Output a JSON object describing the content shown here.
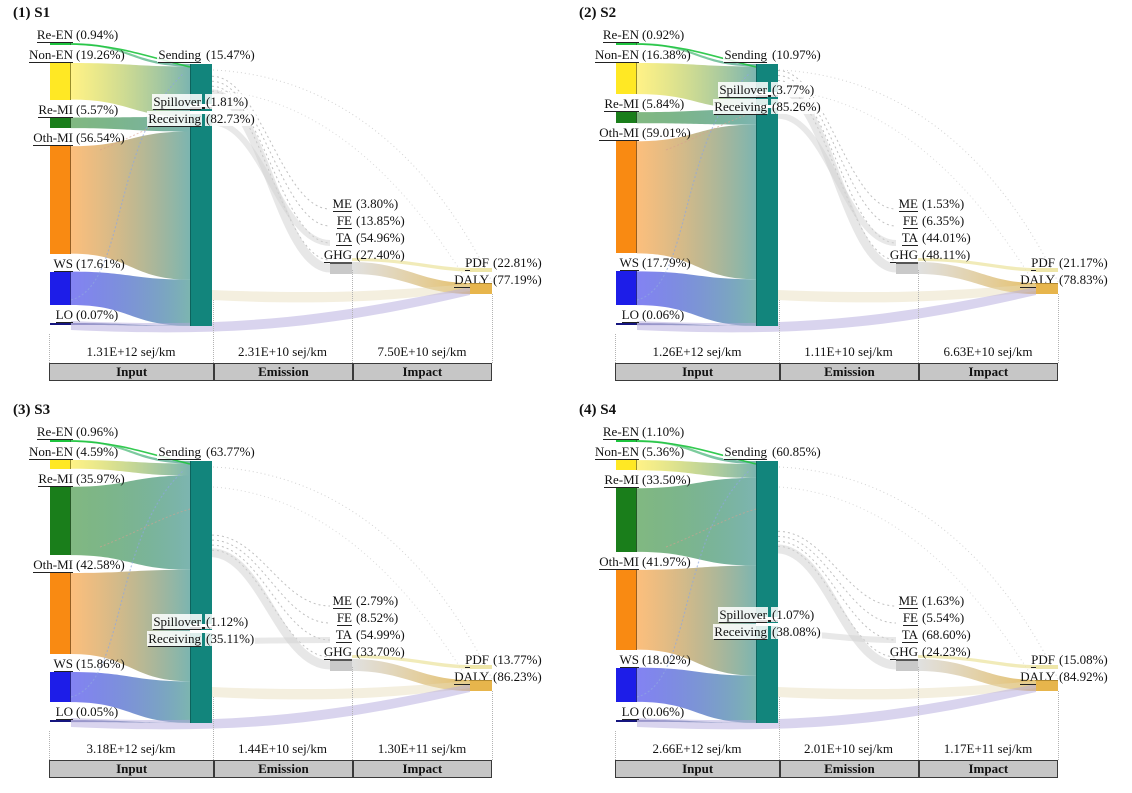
{
  "palette": {
    "re_en": "#1ec43e",
    "non_en": "#ffe824",
    "re_mi": "#1a7e1b",
    "oth_mi": "#f98a12",
    "ws": "#1d1de8",
    "lo": "#15157f",
    "transfer": "#12857c",
    "transfer_flow": "#57a09a",
    "emission_node": "#c9c9c9",
    "pdf_node": "#eee6a8",
    "daly_node": "#e7b54c",
    "impact_flow_start": "#d6d6d6",
    "impact_flow_end": "#e2b54e",
    "lavender_flow": "#b3aade",
    "beige_flow": "#e6dcb8",
    "footer_bg": "#c6c6c6",
    "guide": "#b3b3b3"
  },
  "chart_data": [
    {
      "type": "sankey",
      "title": "(1) S1",
      "input_nodes": [
        {
          "key": "re_en",
          "name": "Re-EN",
          "pct": 0.94
        },
        {
          "key": "non_en",
          "name": "Non-EN",
          "pct": 19.26
        },
        {
          "key": "re_mi",
          "name": "Re-MI",
          "pct": 5.57
        },
        {
          "key": "oth_mi",
          "name": "Oth-MI",
          "pct": 56.54
        },
        {
          "key": "ws",
          "name": "WS",
          "pct": 17.61
        },
        {
          "key": "lo",
          "name": "LO",
          "pct": 0.07
        }
      ],
      "transfer_nodes": [
        {
          "name": "Sending",
          "pct": 15.47
        },
        {
          "name": "Spillover",
          "pct": 1.81
        },
        {
          "name": "Receiving",
          "pct": 82.73
        }
      ],
      "emission_nodes": [
        {
          "name": "ME",
          "pct": 3.8
        },
        {
          "name": "FE",
          "pct": 13.85
        },
        {
          "name": "TA",
          "pct": 54.96
        },
        {
          "name": "GHG",
          "pct": 27.4
        }
      ],
      "impact_nodes": [
        {
          "name": "PDF",
          "pct": 22.81
        },
        {
          "name": "DALY",
          "pct": 77.19
        }
      ],
      "stages": [
        {
          "label": "Input",
          "total": "1.31E+12 sej/km"
        },
        {
          "label": "Emission",
          "total": "2.31E+10 sej/km"
        },
        {
          "label": "Impact",
          "total": "7.50E+10 sej/km"
        }
      ]
    },
    {
      "type": "sankey",
      "title": "(2) S2",
      "input_nodes": [
        {
          "key": "re_en",
          "name": "Re-EN",
          "pct": 0.92
        },
        {
          "key": "non_en",
          "name": "Non-EN",
          "pct": 16.38
        },
        {
          "key": "re_mi",
          "name": "Re-MI",
          "pct": 5.84
        },
        {
          "key": "oth_mi",
          "name": "Oth-MI",
          "pct": 59.01
        },
        {
          "key": "ws",
          "name": "WS",
          "pct": 17.79
        },
        {
          "key": "lo",
          "name": "LO",
          "pct": 0.06
        }
      ],
      "transfer_nodes": [
        {
          "name": "Sending",
          "pct": 10.97
        },
        {
          "name": "Spillover",
          "pct": 3.77
        },
        {
          "name": "Receiving",
          "pct": 85.26
        }
      ],
      "emission_nodes": [
        {
          "name": "ME",
          "pct": 1.53
        },
        {
          "name": "FE",
          "pct": 6.35
        },
        {
          "name": "TA",
          "pct": 44.01
        },
        {
          "name": "GHG",
          "pct": 48.11
        }
      ],
      "impact_nodes": [
        {
          "name": "PDF",
          "pct": 21.17
        },
        {
          "name": "DALY",
          "pct": 78.83
        }
      ],
      "stages": [
        {
          "label": "Input",
          "total": "1.26E+12 sej/km"
        },
        {
          "label": "Emission",
          "total": "1.11E+10 sej/km"
        },
        {
          "label": "Impact",
          "total": "6.63E+10 sej/km"
        }
      ]
    },
    {
      "type": "sankey",
      "title": "(3) S3",
      "input_nodes": [
        {
          "key": "re_en",
          "name": "Re-EN",
          "pct": 0.96
        },
        {
          "key": "non_en",
          "name": "Non-EN",
          "pct": 4.59
        },
        {
          "key": "re_mi",
          "name": "Re-MI",
          "pct": 35.97
        },
        {
          "key": "oth_mi",
          "name": "Oth-MI",
          "pct": 42.58
        },
        {
          "key": "ws",
          "name": "WS",
          "pct": 15.86
        },
        {
          "key": "lo",
          "name": "LO",
          "pct": 0.05
        }
      ],
      "transfer_nodes": [
        {
          "name": "Sending",
          "pct": 63.77
        },
        {
          "name": "Spillover",
          "pct": 1.12
        },
        {
          "name": "Receiving",
          "pct": 35.11
        }
      ],
      "emission_nodes": [
        {
          "name": "ME",
          "pct": 2.79
        },
        {
          "name": "FE",
          "pct": 8.52
        },
        {
          "name": "TA",
          "pct": 54.99
        },
        {
          "name": "GHG",
          "pct": 33.7
        }
      ],
      "impact_nodes": [
        {
          "name": "PDF",
          "pct": 13.77
        },
        {
          "name": "DALY",
          "pct": 86.23
        }
      ],
      "stages": [
        {
          "label": "Input",
          "total": "3.18E+12 sej/km"
        },
        {
          "label": "Emission",
          "total": "1.44E+10 sej/km"
        },
        {
          "label": "Impact",
          "total": "1.30E+11 sej/km"
        }
      ]
    },
    {
      "type": "sankey",
      "title": "(4) S4",
      "input_nodes": [
        {
          "key": "re_en",
          "name": "Re-EN",
          "pct": 1.1
        },
        {
          "key": "non_en",
          "name": "Non-EN",
          "pct": 5.36
        },
        {
          "key": "re_mi",
          "name": "Re-MI",
          "pct": 33.5
        },
        {
          "key": "oth_mi",
          "name": "Oth-MI",
          "pct": 41.97
        },
        {
          "key": "ws",
          "name": "WS",
          "pct": 18.02
        },
        {
          "key": "lo",
          "name": "LO",
          "pct": 0.06
        }
      ],
      "transfer_nodes": [
        {
          "name": "Sending",
          "pct": 60.85
        },
        {
          "name": "Spillover",
          "pct": 1.07
        },
        {
          "name": "Receiving",
          "pct": 38.08
        }
      ],
      "emission_nodes": [
        {
          "name": "ME",
          "pct": 1.63
        },
        {
          "name": "FE",
          "pct": 5.54
        },
        {
          "name": "TA",
          "pct": 68.6
        },
        {
          "name": "GHG",
          "pct": 24.23
        }
      ],
      "impact_nodes": [
        {
          "name": "PDF",
          "pct": 15.08
        },
        {
          "name": "DALY",
          "pct": 84.92
        }
      ],
      "stages": [
        {
          "label": "Input",
          "total": "2.66E+12 sej/km"
        },
        {
          "label": "Emission",
          "total": "2.01E+10 sej/km"
        },
        {
          "label": "Impact",
          "total": "1.17E+11 sej/km"
        }
      ]
    }
  ]
}
